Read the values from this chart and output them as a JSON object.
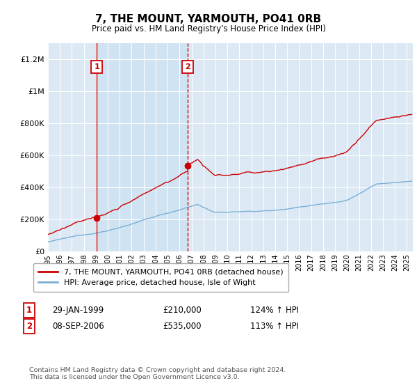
{
  "title": "7, THE MOUNT, YARMOUTH, PO41 0RB",
  "subtitle": "Price paid vs. HM Land Registry's House Price Index (HPI)",
  "ylim": [
    0,
    1300000
  ],
  "yticks": [
    0,
    200000,
    400000,
    600000,
    800000,
    1000000,
    1200000
  ],
  "ytick_labels": [
    "£0",
    "£200K",
    "£400K",
    "£600K",
    "£800K",
    "£1M",
    "£1.2M"
  ],
  "background_color": "#dce9f5",
  "plot_bg_color": "#dce9f5",
  "red_line_color": "#cc0000",
  "blue_line_color": "#7bafd4",
  "marker1_x": 1999.08,
  "marker1_y": 210000,
  "marker2_x": 2006.69,
  "marker2_y": 535000,
  "legend_line1": "7, THE MOUNT, YARMOUTH, PO41 0RB (detached house)",
  "legend_line2": "HPI: Average price, detached house, Isle of Wight",
  "date1": "29-JAN-1999",
  "price1": "£210,000",
  "hpi1": "124% ↑ HPI",
  "date2": "08-SEP-2006",
  "price2": "£535,000",
  "hpi2": "113% ↑ HPI",
  "footnote": "Contains HM Land Registry data © Crown copyright and database right 2024.\nThis data is licensed under the Open Government Licence v3.0.",
  "xmin": 1995.0,
  "xmax": 2025.5,
  "xticks": [
    1995,
    1996,
    1997,
    1998,
    1999,
    2000,
    2001,
    2002,
    2003,
    2004,
    2005,
    2006,
    2007,
    2008,
    2009,
    2010,
    2011,
    2012,
    2013,
    2014,
    2015,
    2016,
    2017,
    2018,
    2019,
    2020,
    2021,
    2022,
    2023,
    2024,
    2025
  ]
}
